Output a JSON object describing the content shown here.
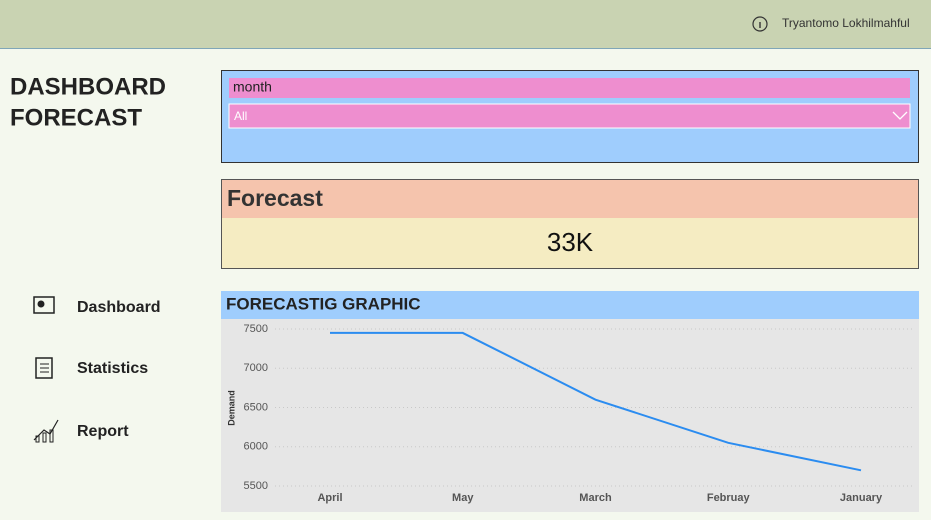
{
  "header": {
    "user": "Tryantomo Lokhilmahful"
  },
  "sidebar": {
    "title_line1": "DASHBOARD",
    "title_line2": "FORECAST",
    "nav": [
      "Dashboard",
      "Statistics",
      "Report"
    ]
  },
  "slicer": {
    "label": "month",
    "value": "All"
  },
  "card": {
    "title": "Forecast",
    "value": "33K"
  },
  "chart_data": {
    "type": "line",
    "title": "FORECASTIG GRAPHIC",
    "y_label": "Demand",
    "categories": [
      "April",
      "May",
      "March",
      "Februay",
      "January"
    ],
    "series": [
      {
        "name": "Demand",
        "color": "#2b8cf0",
        "values": [
          7450,
          7450,
          6600,
          6050,
          5700
        ]
      }
    ],
    "ylim": [
      5500,
      7500
    ],
    "yticks": [
      5500,
      6000,
      6500,
      7000,
      7500
    ],
    "grid": true
  }
}
